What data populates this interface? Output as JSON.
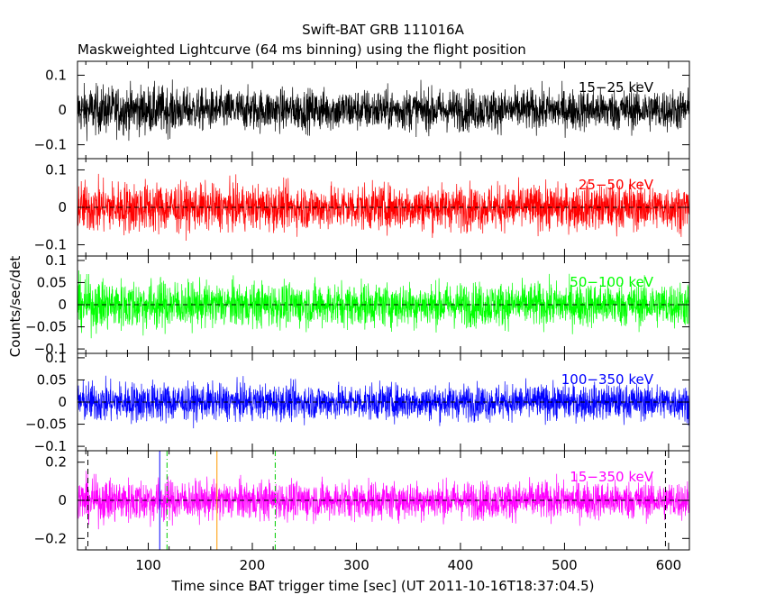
{
  "chart_data": {
    "type": "line",
    "title": "Swift-BAT GRB 111016A",
    "subtitle": "Maskweighted Lightcurve (64 ms binning) using the flight position",
    "xlabel": "Time since BAT trigger time [sec] (UT 2011-10-16T18:37:04.5)",
    "ylabel": "Counts/sec/det",
    "xlim": [
      32,
      620
    ],
    "xticks": [
      "100",
      "200",
      "300",
      "400",
      "500",
      "600"
    ],
    "grid": false,
    "panels": [
      {
        "name": "15-25 keV",
        "label": "15−25 keV",
        "color": "#000000",
        "ylim": [
          -0.14,
          0.14
        ],
        "yticks": [
          "0.1",
          "0",
          "−0.1"
        ],
        "ytick_values": [
          0.1,
          0,
          -0.1
        ],
        "noise_sigma": 0.03,
        "zero_line": false
      },
      {
        "name": "25-50 keV",
        "label": "25−50 keV",
        "color": "#ff0000",
        "ylim": [
          -0.13,
          0.13
        ],
        "yticks": [
          "0.1",
          "0",
          "−0.1"
        ],
        "ytick_values": [
          0.1,
          0,
          -0.1
        ],
        "noise_sigma": 0.03,
        "zero_line": true
      },
      {
        "name": "50-100 keV",
        "label": "50−100 keV",
        "color": "#00ff00",
        "ylim": [
          -0.11,
          0.11
        ],
        "yticks": [
          "0.1",
          "0.05",
          "0",
          "−0.05",
          "−0.1"
        ],
        "ytick_values": [
          0.1,
          0.05,
          0,
          -0.05,
          -0.1
        ],
        "noise_sigma": 0.025,
        "zero_line": true
      },
      {
        "name": "100-350 keV",
        "label": "100−350 keV",
        "color": "#0000ff",
        "ylim": [
          -0.11,
          0.11
        ],
        "yticks": [
          "0.1",
          "0.05",
          "0",
          "−0.05",
          "−0.1"
        ],
        "ytick_values": [
          0.1,
          0.05,
          0,
          -0.05,
          -0.1
        ],
        "noise_sigma": 0.02,
        "zero_line": true
      },
      {
        "name": "15-350 keV",
        "label": "15−350 keV",
        "color": "#ff00ff",
        "ylim": [
          -0.26,
          0.26
        ],
        "yticks": [
          "0.2",
          "0",
          "−0.2"
        ],
        "ytick_values": [
          0.2,
          0,
          -0.2
        ],
        "noise_sigma": 0.05,
        "zero_line": true
      }
    ],
    "markers": [
      {
        "x": 42,
        "style": "dashed",
        "color": "#000000"
      },
      {
        "x": 111,
        "style": "solid",
        "color": "#0000ff"
      },
      {
        "x": 118,
        "style": "dash-dot",
        "color": "#00cc00"
      },
      {
        "x": 166,
        "style": "solid",
        "color": "#ff9900"
      },
      {
        "x": 222,
        "style": "dash-dot",
        "color": "#00cc00"
      },
      {
        "x": 597,
        "style": "dashed",
        "color": "#000000"
      }
    ]
  }
}
